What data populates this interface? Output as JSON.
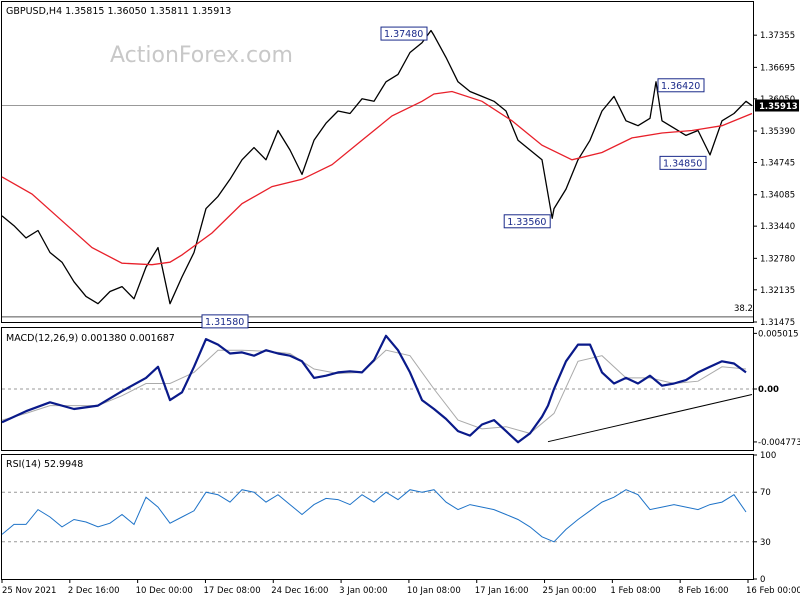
{
  "chart_data": {
    "type": "line",
    "instrument": {
      "header": "GBPUSD,H4  1.35815 1.36050 1.35811 1.35913",
      "last_price": "1.35913",
      "watermark": "ActionForex.com"
    },
    "x_axis": {
      "tick_labels": [
        "25 Nov 2021",
        "2 Dec 16:00",
        "10 Dec 00:00",
        "17 Dec 08:00",
        "24 Dec 16:00",
        "3 Jan 00:00",
        "10 Jan 08:00",
        "17 Jan 16:00",
        "25 Jan 00:00",
        "1 Feb 08:00",
        "8 Feb 16:00",
        "16 Feb 00:00"
      ]
    },
    "price_panel": {
      "ylim": [
        1.31475,
        1.38035
      ],
      "y_ticks": [
        "1.37355",
        "1.36695",
        "1.36050",
        "1.35390",
        "1.34745",
        "1.34085",
        "1.33440",
        "1.32780",
        "1.32135",
        "1.31475"
      ],
      "y_tick_values": [
        1.37355,
        1.36695,
        1.3605,
        1.3539,
        1.34745,
        1.34085,
        1.3344,
        1.3278,
        1.32135,
        1.31475
      ],
      "fib_label": "38.2",
      "fib_level": 1.3158,
      "horizontal_line": 1.35913,
      "annotations": [
        {
          "label": "1.37480",
          "x": 71.5,
          "value": 1.3748
        },
        {
          "label": "1.36420",
          "x": 109,
          "value": 1.3642
        },
        {
          "label": "1.33560",
          "x": 91.7,
          "value": 1.3356
        },
        {
          "label": "1.34850",
          "x": 118,
          "value": 1.3485
        },
        {
          "label": "1.31580",
          "x": 28,
          "value": 1.3158
        }
      ],
      "series": [
        {
          "x": [
            0,
            2,
            4,
            6,
            8,
            10,
            12,
            14,
            16,
            18,
            20,
            22,
            24,
            26,
            28,
            30,
            32,
            34,
            36,
            38,
            40,
            42,
            44,
            46,
            48,
            50,
            52,
            54,
            56,
            58,
            60,
            62,
            64,
            66,
            68,
            70,
            71.5,
            72,
            74,
            76,
            78,
            80,
            82,
            84,
            86,
            88,
            90,
            91.7,
            92,
            94,
            96,
            98,
            100,
            102,
            104,
            106,
            108,
            109,
            110,
            112,
            114,
            116,
            118,
            120,
            122,
            124,
            125
          ],
          "values": [
            1.3365,
            1.3345,
            1.332,
            1.3335,
            1.329,
            1.327,
            1.323,
            1.32,
            1.3185,
            1.321,
            1.322,
            1.3195,
            1.326,
            1.33,
            1.3185,
            1.324,
            1.329,
            1.338,
            1.3405,
            1.344,
            1.348,
            1.3505,
            1.348,
            1.354,
            1.35,
            1.345,
            1.352,
            1.3555,
            1.358,
            1.3575,
            1.3605,
            1.36,
            1.364,
            1.3655,
            1.37,
            1.372,
            1.3745,
            1.3735,
            1.369,
            1.364,
            1.362,
            1.361,
            1.36,
            1.358,
            1.352,
            1.35,
            1.348,
            1.336,
            1.338,
            1.342,
            1.348,
            1.352,
            1.358,
            1.361,
            1.356,
            1.355,
            1.3565,
            1.364,
            1.356,
            1.3545,
            1.353,
            1.354,
            1.349,
            1.356,
            1.3575,
            1.36,
            1.3591
          ]
        },
        {
          "x": [
            0,
            5,
            10,
            15,
            20,
            25,
            28,
            30,
            35,
            40,
            45,
            50,
            55,
            60,
            65,
            70,
            72,
            75,
            80,
            85,
            90,
            95,
            100,
            105,
            110,
            115,
            120,
            125
          ],
          "values": [
            1.3445,
            1.341,
            1.3355,
            1.33,
            1.3268,
            1.3265,
            1.327,
            1.3285,
            1.333,
            1.339,
            1.3425,
            1.344,
            1.347,
            1.352,
            1.357,
            1.36,
            1.3615,
            1.362,
            1.36,
            1.356,
            1.351,
            1.348,
            1.3495,
            1.3525,
            1.3535,
            1.354,
            1.355,
            1.3575
          ]
        }
      ]
    },
    "macd_panel": {
      "label": "MACD(12,26,9) 0.001380 0.001687",
      "ylim": [
        -0.0055,
        0.0055
      ],
      "y_ticks": [
        "0.005015",
        "0.00",
        "-0.004773"
      ],
      "y_tick_values": [
        0.005015,
        0.0,
        -0.004773
      ],
      "trendline": {
        "x": [
          91,
          125
        ],
        "values": [
          -0.00475,
          -0.0005
        ]
      },
      "series": [
        {
          "x": [
            0,
            4,
            8,
            12,
            16,
            20,
            24,
            26,
            28,
            30,
            32,
            34,
            36,
            38,
            40,
            42,
            44,
            46,
            48,
            50,
            52,
            54,
            56,
            58,
            60,
            62,
            64,
            66,
            68,
            70,
            72,
            74,
            76,
            78,
            80,
            82,
            84,
            86,
            88,
            90,
            91,
            92,
            94,
            96,
            98,
            100,
            102,
            104,
            106,
            108,
            110,
            112,
            114,
            116,
            118,
            120,
            122,
            124
          ],
          "values": [
            -0.003,
            -0.002,
            -0.0012,
            -0.0018,
            -0.0015,
            -0.0002,
            0.001,
            0.002,
            -0.001,
            -0.0003,
            0.002,
            0.0045,
            0.004,
            0.0032,
            0.0033,
            0.003,
            0.0035,
            0.0032,
            0.003,
            0.0025,
            0.001,
            0.0012,
            0.0015,
            0.0016,
            0.0015,
            0.0026,
            0.0048,
            0.0035,
            0.0015,
            -0.001,
            -0.0018,
            -0.0027,
            -0.0038,
            -0.0042,
            -0.0032,
            -0.0028,
            -0.0038,
            -0.0048,
            -0.004,
            -0.0025,
            -0.0015,
            0.0,
            0.0025,
            0.004,
            0.004,
            0.0015,
            0.0005,
            0.001,
            0.0005,
            0.0012,
            0.0003,
            0.0005,
            0.0008,
            0.0015,
            0.002,
            0.0025,
            0.0023,
            0.0015
          ]
        },
        {
          "x": [
            0,
            4,
            8,
            12,
            16,
            20,
            24,
            28,
            32,
            36,
            40,
            44,
            48,
            52,
            56,
            60,
            64,
            68,
            72,
            76,
            80,
            84,
            88,
            92,
            96,
            100,
            104,
            108,
            112,
            116,
            120,
            124
          ],
          "values": [
            -0.0028,
            -0.0022,
            -0.0015,
            -0.0015,
            -0.0015,
            -0.0006,
            0.0005,
            0.0005,
            0.0015,
            0.0035,
            0.0035,
            0.0034,
            0.0032,
            0.0018,
            0.0014,
            0.0015,
            0.0035,
            0.003,
            0.0,
            -0.0028,
            -0.0036,
            -0.0034,
            -0.004,
            -0.0022,
            0.0025,
            0.003,
            0.001,
            0.001,
            0.0005,
            0.0007,
            0.002,
            0.0018
          ]
        }
      ]
    },
    "rsi_panel": {
      "label": "RSI(14) 52.9948",
      "ylim": [
        0,
        100
      ],
      "y_ticks": [
        "100",
        "70",
        "30",
        "0"
      ],
      "y_tick_values": [
        100,
        70,
        30,
        0
      ],
      "series": [
        {
          "x": [
            0,
            2,
            4,
            6,
            8,
            10,
            12,
            14,
            16,
            18,
            20,
            22,
            24,
            26,
            28,
            30,
            32,
            34,
            36,
            38,
            40,
            42,
            44,
            46,
            48,
            50,
            52,
            54,
            56,
            58,
            60,
            62,
            64,
            66,
            68,
            70,
            72,
            74,
            76,
            78,
            80,
            82,
            84,
            86,
            88,
            90,
            92,
            94,
            96,
            98,
            100,
            102,
            104,
            106,
            108,
            110,
            112,
            114,
            116,
            118,
            120,
            122,
            124
          ],
          "values": [
            36,
            44,
            44,
            56,
            50,
            42,
            48,
            46,
            42,
            45,
            52,
            44,
            66,
            58,
            45,
            50,
            55,
            70,
            68,
            62,
            72,
            70,
            62,
            68,
            60,
            52,
            60,
            65,
            64,
            60,
            68,
            62,
            70,
            64,
            72,
            70,
            72,
            62,
            56,
            60,
            58,
            56,
            52,
            48,
            42,
            34,
            30,
            40,
            48,
            55,
            62,
            66,
            72,
            68,
            56,
            58,
            60,
            58,
            56,
            60,
            62,
            68,
            54
          ]
        }
      ]
    }
  }
}
